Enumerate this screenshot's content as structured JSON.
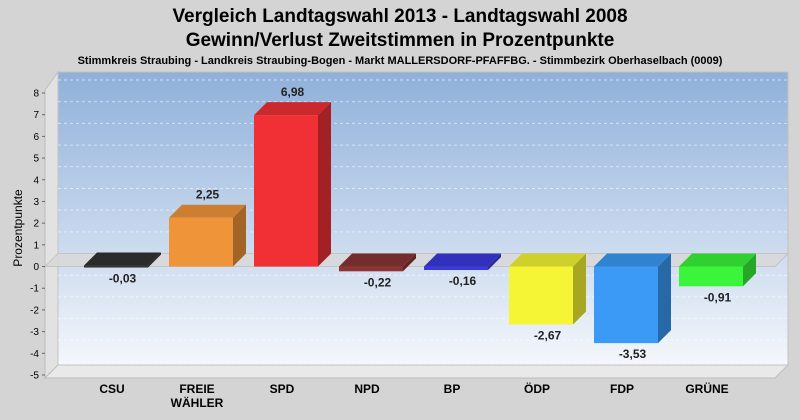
{
  "chart_data": {
    "type": "bar",
    "title": "Vergleich Landtagswahl 2013 - Landtagswahl 2008",
    "subtitle": "Gewinn/Verlust Zweitstimmen in Prozentpunkte",
    "caption": "Stimmkreis Straubing - Landkreis Straubing-Bogen - Markt MALLERSDORF-PFAFFBG. - Stimmbezirk Oberhaselbach (0009)",
    "ylabel": "Prozentpunkte",
    "ylim": [
      -5,
      8
    ],
    "yticks": [
      -5,
      -4,
      -3,
      -2,
      -1,
      0,
      1,
      2,
      3,
      4,
      5,
      6,
      7,
      8
    ],
    "categories": [
      [
        "CSU"
      ],
      [
        "FREIE",
        "WÄHLER"
      ],
      [
        "SPD"
      ],
      [
        "NPD"
      ],
      [
        "BP"
      ],
      [
        "ÖDP"
      ],
      [
        "FDP"
      ],
      [
        "GRÜNE"
      ]
    ],
    "values": [
      -0.03,
      2.25,
      6.98,
      -0.22,
      -0.16,
      -2.67,
      -3.53,
      -0.91
    ],
    "value_labels": [
      "-0,03",
      "2,25",
      "6,98",
      "-0,22",
      "-0,16",
      "-2,67",
      "-3,53",
      "-0,91"
    ],
    "colors": [
      "#333333",
      "#f0943a",
      "#f03035",
      "#8a3434",
      "#3a3adc",
      "#f5f535",
      "#3a9af5",
      "#3af53a"
    ],
    "grid": true
  }
}
